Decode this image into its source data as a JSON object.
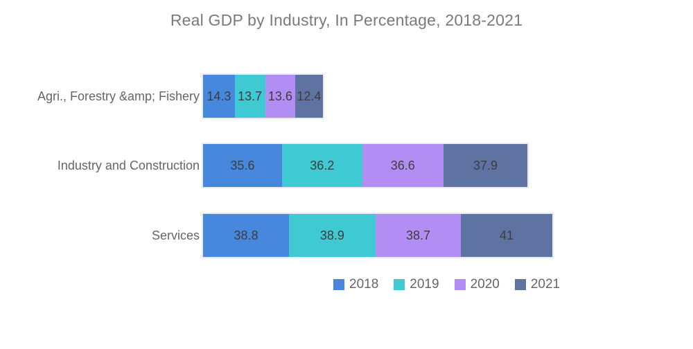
{
  "chart_data": {
    "type": "bar",
    "orientation": "horizontal",
    "stacked": true,
    "title": "Real GDP by Industry, In Percentage, 2018-2021",
    "categories": [
      "Agri., Forestry &amp; Fishery",
      "Industry and Construction",
      "Services"
    ],
    "series": [
      {
        "name": "2018",
        "color": "#4787DE",
        "values": [
          14.3,
          35.6,
          38.8
        ]
      },
      {
        "name": "2019",
        "color": "#3FC9D3",
        "values": [
          13.7,
          36.2,
          38.9
        ]
      },
      {
        "name": "2020",
        "color": "#B28DF3",
        "values": [
          13.6,
          36.6,
          38.7
        ]
      },
      {
        "name": "2021",
        "color": "#5E73A1",
        "values": [
          12.4,
          37.9,
          41
        ]
      }
    ],
    "value_labels": "inside",
    "legend_position": "bottom-right",
    "grid": false,
    "axes_visible": false,
    "xlim": [
      0,
      157.4
    ]
  },
  "colors": {
    "background": "#ffffff",
    "title_text": "#7a7a7a",
    "category_label_text": "#666666",
    "value_label_text": "#3d3d3d",
    "legend_label_text": "#666666",
    "bar_group_outline": "#e7ebf7"
  }
}
